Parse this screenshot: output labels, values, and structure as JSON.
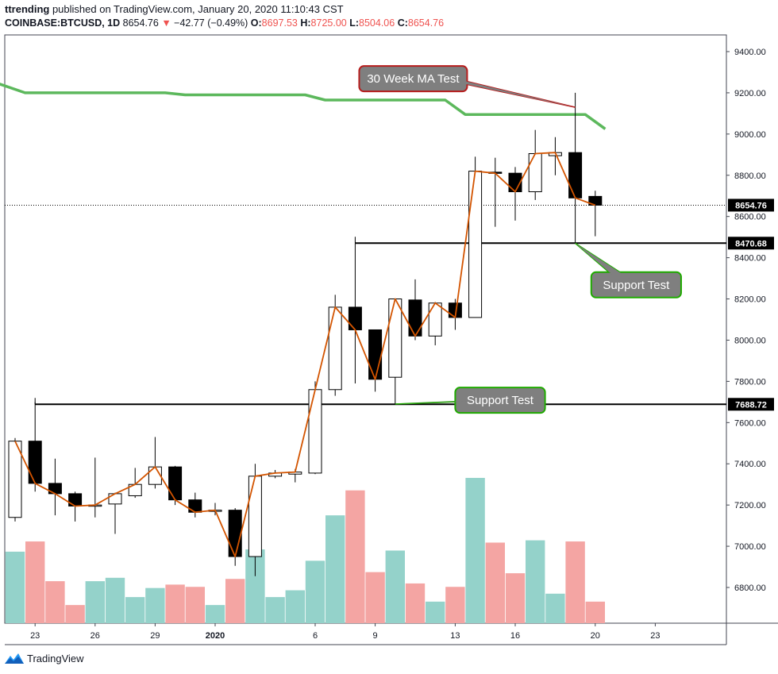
{
  "header": {
    "author": "ttrending",
    "published_text": "published on TradingView.com, January 20, 2020 11:10:43 CST",
    "symbol": "COINBASE:BTCUSD, 1D",
    "last": "8654.76",
    "change": "−42.77 (−0.49%)",
    "o_label": "O:",
    "o_value": "8697.53",
    "h_label": "H:",
    "h_value": "8725.00",
    "l_label": "L:",
    "l_value": "8504.06",
    "c_label": "C:",
    "c_value": "8654.76"
  },
  "footer": {
    "brand": "TradingView"
  },
  "colors": {
    "up_volume": "#94d2ca",
    "down_volume": "#f4a5a3",
    "ma_line": "#5cb85c",
    "close_line": "#d35400",
    "callout_fill": "#7f7f7f",
    "callout_red_border": "#b71c1c",
    "callout_green_border": "#1faa00"
  },
  "chart_data": {
    "type": "candlestick",
    "y_axis": {
      "min": 6640,
      "max": 9490,
      "ticks": [
        "9400.00",
        "9200.00",
        "9000.00",
        "8800.00",
        "8600.00",
        "8400.00",
        "8200.00",
        "8000.00",
        "7800.00",
        "7600.00",
        "7400.00",
        "7200.00",
        "7000.00",
        "6800.00"
      ]
    },
    "x_ticks": [
      {
        "i": 1,
        "label": "23"
      },
      {
        "i": 4,
        "label": "26"
      },
      {
        "i": 7,
        "label": "29"
      },
      {
        "i": 10,
        "label": "2020"
      },
      {
        "i": 15,
        "label": "6"
      },
      {
        "i": 18,
        "label": "9"
      },
      {
        "i": 22,
        "label": "13"
      },
      {
        "i": 25,
        "label": "16"
      },
      {
        "i": 29,
        "label": "20"
      },
      {
        "i": 32,
        "label": "23"
      }
    ],
    "candles": [
      {
        "o": 7140,
        "h": 7525,
        "l": 7120,
        "c": 7510
      },
      {
        "o": 7510,
        "h": 7700,
        "l": 7265,
        "c": 7305
      },
      {
        "o": 7305,
        "h": 7425,
        "l": 7150,
        "c": 7255
      },
      {
        "o": 7255,
        "h": 7265,
        "l": 7120,
        "c": 7195
      },
      {
        "o": 7200,
        "h": 7430,
        "l": 7140,
        "c": 7200
      },
      {
        "o": 7205,
        "h": 7260,
        "l": 7060,
        "c": 7255
      },
      {
        "o": 7245,
        "h": 7380,
        "l": 7235,
        "c": 7300
      },
      {
        "o": 7300,
        "h": 7530,
        "l": 7280,
        "c": 7385
      },
      {
        "o": 7385,
        "h": 7390,
        "l": 7200,
        "c": 7225
      },
      {
        "o": 7225,
        "h": 7260,
        "l": 7140,
        "c": 7165
      },
      {
        "o": 7170,
        "h": 7210,
        "l": 7150,
        "c": 7175
      },
      {
        "o": 7175,
        "h": 7185,
        "l": 6905,
        "c": 6950
      },
      {
        "o": 6950,
        "h": 7400,
        "l": 6855,
        "c": 7340
      },
      {
        "o": 7340,
        "h": 7370,
        "l": 7330,
        "c": 7355
      },
      {
        "o": 7350,
        "h": 7375,
        "l": 7310,
        "c": 7360
      },
      {
        "o": 7355,
        "h": 7800,
        "l": 7350,
        "c": 7760
      },
      {
        "o": 7760,
        "h": 8220,
        "l": 7730,
        "c": 8160
      },
      {
        "o": 8160,
        "h": 8470,
        "l": 7790,
        "c": 8050
      },
      {
        "o": 8050,
        "h": 8050,
        "l": 7750,
        "c": 7810
      },
      {
        "o": 7820,
        "h": 8200,
        "l": 7690,
        "c": 8200
      },
      {
        "o": 8195,
        "h": 8295,
        "l": 8000,
        "c": 8020
      },
      {
        "o": 8020,
        "h": 8185,
        "l": 7975,
        "c": 8180
      },
      {
        "o": 8180,
        "h": 8200,
        "l": 8050,
        "c": 8110
      },
      {
        "o": 8110,
        "h": 8890,
        "l": 8110,
        "c": 8820
      },
      {
        "o": 8815,
        "h": 8885,
        "l": 8550,
        "c": 8810
      },
      {
        "o": 8810,
        "h": 8840,
        "l": 8580,
        "c": 8720
      },
      {
        "o": 8720,
        "h": 9020,
        "l": 8680,
        "c": 8905
      },
      {
        "o": 8895,
        "h": 8985,
        "l": 8800,
        "c": 8910
      },
      {
        "o": 8910,
        "h": 9200,
        "l": 8470,
        "c": 8690
      },
      {
        "o": 8697.53,
        "h": 8725,
        "l": 8504.06,
        "c": 8654.76
      }
    ],
    "volume": [
      {
        "v": 0.63,
        "dir": "up"
      },
      {
        "v": 0.72,
        "dir": "down"
      },
      {
        "v": 0.37,
        "dir": "down"
      },
      {
        "v": 0.16,
        "dir": "down"
      },
      {
        "v": 0.37,
        "dir": "up"
      },
      {
        "v": 0.4,
        "dir": "up"
      },
      {
        "v": 0.23,
        "dir": "up"
      },
      {
        "v": 0.31,
        "dir": "up"
      },
      {
        "v": 0.34,
        "dir": "down"
      },
      {
        "v": 0.32,
        "dir": "down"
      },
      {
        "v": 0.16,
        "dir": "up"
      },
      {
        "v": 0.39,
        "dir": "down"
      },
      {
        "v": 0.65,
        "dir": "up"
      },
      {
        "v": 0.23,
        "dir": "up"
      },
      {
        "v": 0.29,
        "dir": "up"
      },
      {
        "v": 0.55,
        "dir": "up"
      },
      {
        "v": 0.95,
        "dir": "up"
      },
      {
        "v": 1.17,
        "dir": "down"
      },
      {
        "v": 0.45,
        "dir": "down"
      },
      {
        "v": 0.64,
        "dir": "up"
      },
      {
        "v": 0.35,
        "dir": "down"
      },
      {
        "v": 0.19,
        "dir": "up"
      },
      {
        "v": 0.32,
        "dir": "down"
      },
      {
        "v": 1.28,
        "dir": "up"
      },
      {
        "v": 0.71,
        "dir": "down"
      },
      {
        "v": 0.44,
        "dir": "down"
      },
      {
        "v": 0.73,
        "dir": "up"
      },
      {
        "v": 0.26,
        "dir": "up"
      },
      {
        "v": 0.72,
        "dir": "down"
      },
      {
        "v": 0.19,
        "dir": "down"
      }
    ],
    "ma_30_week": [
      {
        "i": -1,
        "v": 9250
      },
      {
        "i": 0.5,
        "v": 9200
      },
      {
        "i": 7.5,
        "v": 9200
      },
      {
        "i": 8.5,
        "v": 9190
      },
      {
        "i": 14.5,
        "v": 9190
      },
      {
        "i": 15.5,
        "v": 9165
      },
      {
        "i": 21.5,
        "v": 9165
      },
      {
        "i": 22.5,
        "v": 9095
      },
      {
        "i": 28.5,
        "v": 9095
      },
      {
        "i": 29.5,
        "v": 9025
      }
    ],
    "levels": [
      {
        "value": 8470.68,
        "label": "8470.68",
        "start_i": 17
      },
      {
        "value": 7688.72,
        "label": "7688.72",
        "start_i": 1
      }
    ],
    "current_price": {
      "value": 8654.76,
      "label": "8654.76"
    },
    "annotations": [
      {
        "text": "30 Week MA Test",
        "style": "red",
        "target_i": 28,
        "target_v": 9130,
        "box_i": 17.2,
        "box_v": 9330
      },
      {
        "text": "Support Test",
        "style": "green",
        "target_i": 28,
        "target_v": 8470,
        "box_i": 28.8,
        "box_v": 8330
      },
      {
        "text": "Support Test",
        "style": "green",
        "target_i": 19,
        "target_v": 7690,
        "box_i": 22,
        "box_v": 7770
      }
    ]
  }
}
